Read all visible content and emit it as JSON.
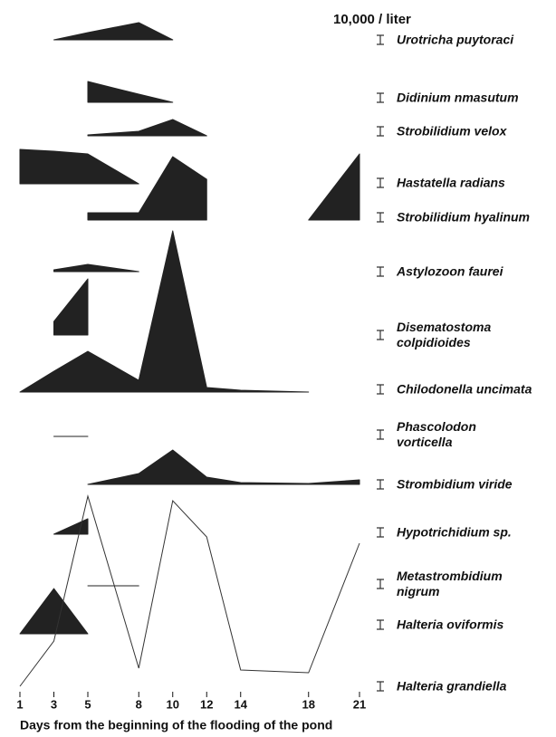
{
  "chart_data": {
    "type": "kite",
    "title": "10,000 / liter",
    "x_label": "Days from the beginning of the flooding of the pond",
    "x": [
      1,
      3,
      5,
      8,
      10,
      12,
      14,
      18,
      21
    ],
    "xlim": [
      1,
      21
    ],
    "xticks": [
      1,
      3,
      5,
      8,
      10,
      12,
      14,
      18,
      21
    ],
    "color": "#222222",
    "series": [
      {
        "name": "Urotricha puytoraci",
        "values": [
          null,
          0,
          8,
          19,
          0,
          null,
          null,
          null,
          null
        ]
      },
      {
        "name": "Didinium nmasutum",
        "values": [
          null,
          null,
          23,
          9,
          0,
          null,
          null,
          null,
          null
        ]
      },
      {
        "name": "Strobilidium velox",
        "values": [
          null,
          null,
          1,
          5,
          18,
          0,
          null,
          null,
          null
        ]
      },
      {
        "name": "Hastatella radians",
        "values": [
          38,
          36,
          33,
          0,
          null,
          null,
          null,
          null,
          null
        ]
      },
      {
        "name": "Strobilidium hyalinum",
        "values": [
          null,
          null,
          8,
          8,
          70,
          45,
          null,
          0,
          73
        ]
      },
      {
        "name": "Astylozoon faurei",
        "values": [
          null,
          2,
          8,
          0,
          null,
          null,
          null,
          null,
          null
        ]
      },
      {
        "name": "Disematostoma colpidioides",
        "values": [
          null,
          15,
          62,
          null,
          null,
          null,
          null,
          null,
          null
        ]
      },
      {
        "name": "Chilodonella uncimata",
        "values": [
          0,
          23,
          45,
          13,
          178,
          5,
          2,
          0,
          null
        ]
      },
      {
        "name": "Phascolodon vorticella",
        "values": [
          null,
          0,
          0,
          null,
          null,
          null,
          null,
          null,
          null
        ]
      },
      {
        "name": "Strombidium viride",
        "values": [
          null,
          null,
          0,
          12,
          38,
          8,
          2,
          1,
          5
        ]
      },
      {
        "name": "Hypotrichidium sp.",
        "values": [
          null,
          0,
          17,
          null,
          null,
          null,
          null,
          null,
          null
        ]
      },
      {
        "name": "Metastrombidium nigrum",
        "values": [
          null,
          null,
          0,
          0,
          null,
          null,
          null,
          null,
          null
        ]
      },
      {
        "name": "Halteria oviformis",
        "values": [
          0,
          50,
          0,
          null,
          null,
          null,
          null,
          null,
          null
        ]
      },
      {
        "name": "Halteria grandiella",
        "style": "line",
        "values": [
          0,
          50,
          210,
          20,
          205,
          165,
          18,
          15,
          158
        ]
      }
    ]
  }
}
